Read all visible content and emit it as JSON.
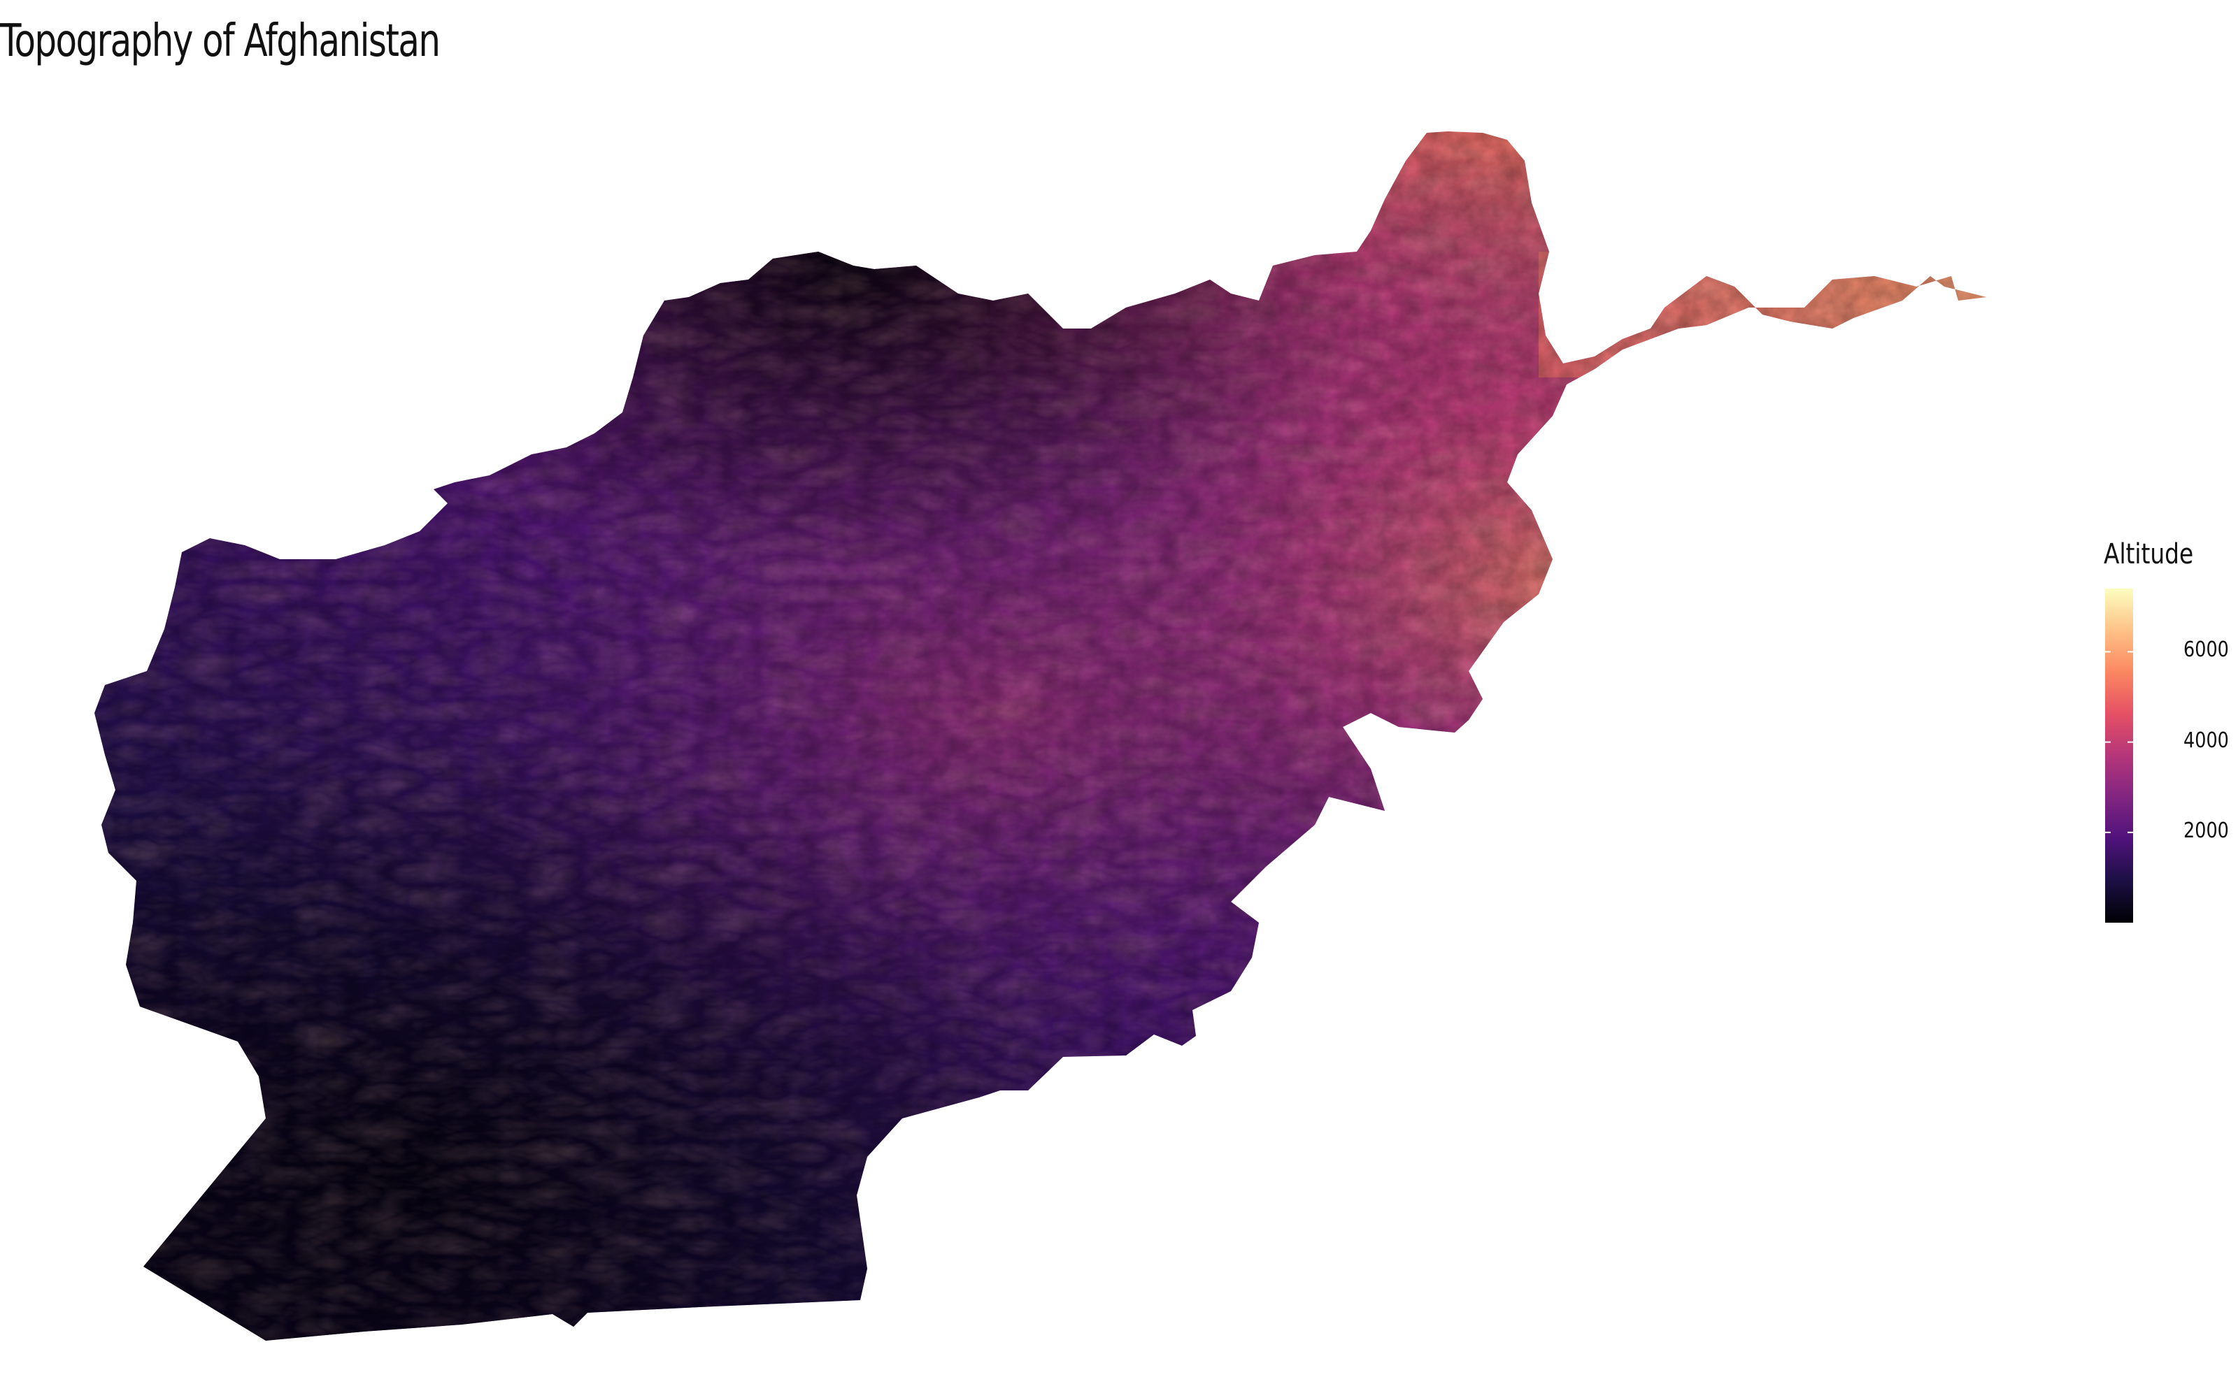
{
  "title": "Topography of Afghanistan",
  "legend": {
    "title": "Altitude",
    "ticks": [
      "6000",
      "4000",
      "2000"
    ],
    "tick_values": [
      6000,
      4000,
      2000
    ],
    "range": [
      0,
      7400
    ],
    "colormap": "magma",
    "stops": [
      "#000004",
      "#1c1044",
      "#4f127b",
      "#812581",
      "#b5367a",
      "#e55064",
      "#fb8761",
      "#fec287",
      "#fcfdbf"
    ]
  },
  "map": {
    "region": "Afghanistan",
    "type": "elevation raster"
  }
}
